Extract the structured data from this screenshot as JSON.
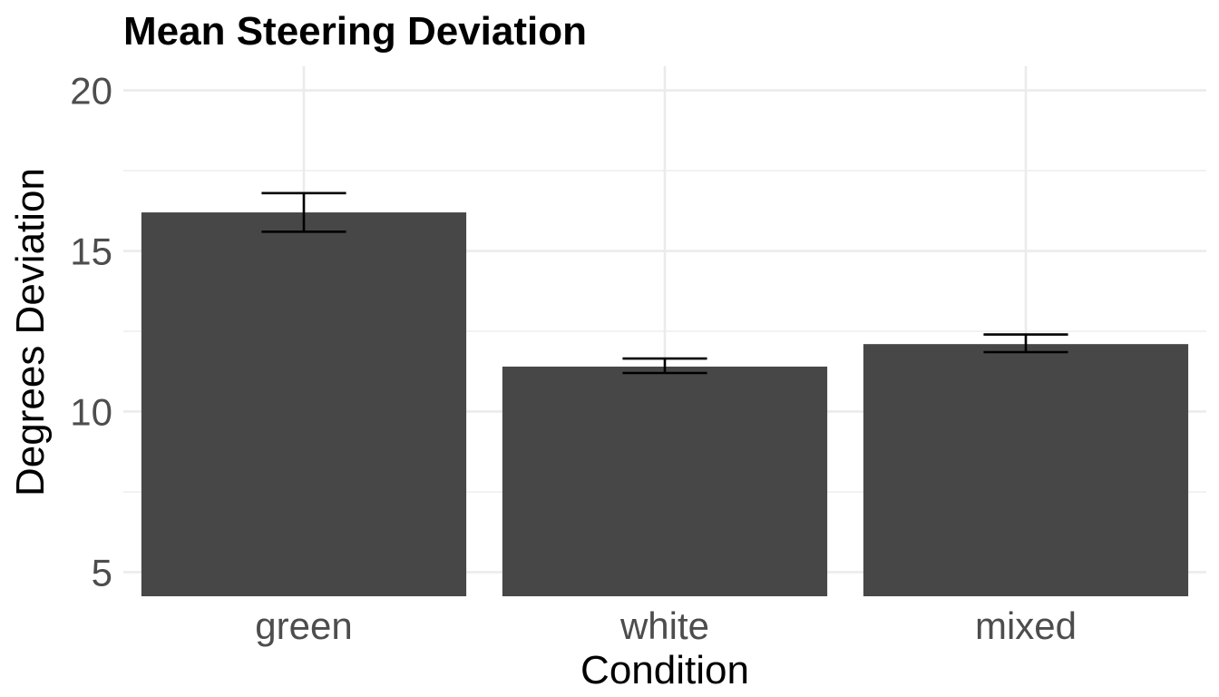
{
  "chart_data": {
    "type": "bar",
    "title": "Mean Steering Deviation",
    "xlabel": "Condition",
    "ylabel": "Degrees Deviation",
    "categories": [
      "green",
      "white",
      "mixed"
    ],
    "values": [
      16.2,
      11.4,
      12.1
    ],
    "error_low": [
      15.6,
      11.2,
      11.85
    ],
    "error_high": [
      16.8,
      11.65,
      12.4
    ],
    "ylim": [
      4.25,
      20.75
    ],
    "yticks": [
      5,
      10,
      15,
      20
    ],
    "grid": true,
    "bar_color": "#474747",
    "errorbar_color": "#000000",
    "grid_color": "#ebebeb"
  }
}
